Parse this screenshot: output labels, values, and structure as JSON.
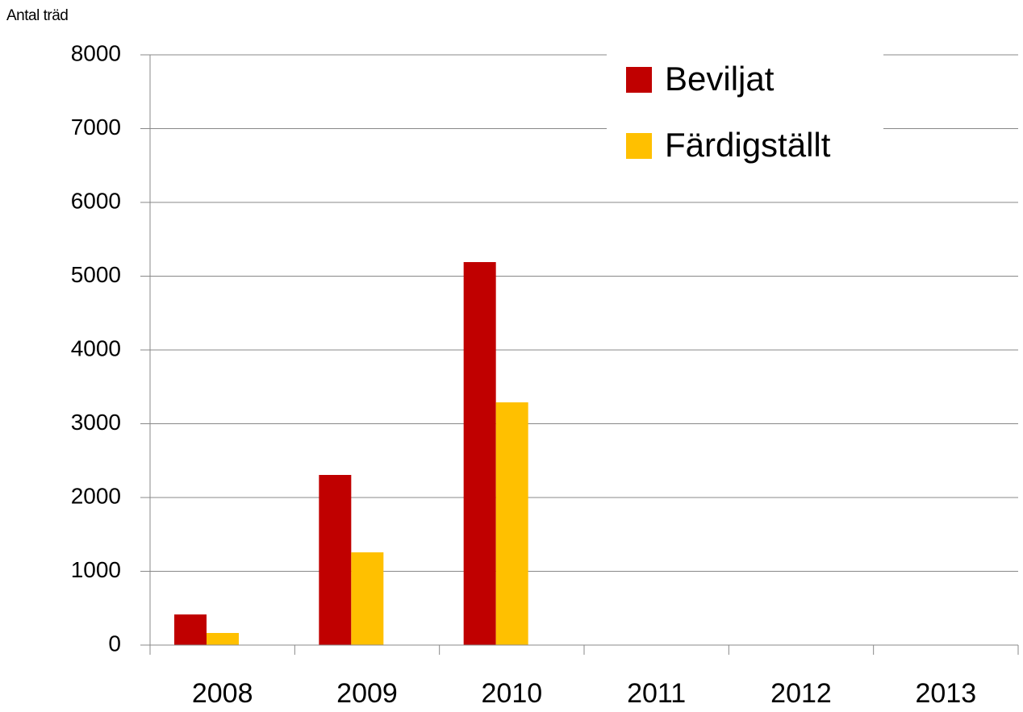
{
  "chart_data": {
    "type": "bar",
    "y_label": "Antal träd",
    "categories": [
      "2008",
      "2009",
      "2010",
      "2011",
      "2012",
      "2013"
    ],
    "series": [
      {
        "name": "Beviljat",
        "color": "#c00000",
        "values": [
          415,
          2306,
          5191,
          null,
          null,
          null
        ]
      },
      {
        "name": "Färdigställt",
        "color": "#ffc000",
        "values": [
          164,
          1257,
          3290,
          null,
          null,
          null
        ]
      }
    ],
    "ylim": [
      0,
      8000
    ],
    "yticks": [
      0,
      1000,
      2000,
      3000,
      4000,
      5000,
      6000,
      7000,
      8000
    ],
    "grid": true,
    "legend": "top-right"
  }
}
